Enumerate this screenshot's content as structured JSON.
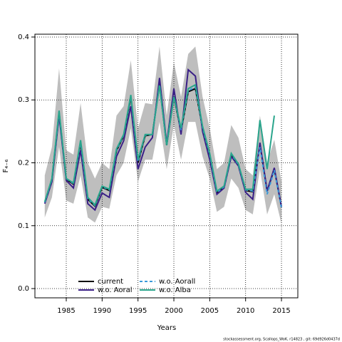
{
  "chart_data": {
    "type": "line",
    "xlabel": "Years",
    "ylabel": "F₄₋₆",
    "footer": "stockassessment.org, Scallops_WoK, r14823 , git: 69d926d0437d",
    "x": [
      1982,
      1983,
      1984,
      1985,
      1986,
      1987,
      1988,
      1989,
      1990,
      1991,
      1992,
      1993,
      1994,
      1995,
      1996,
      1997,
      1998,
      1999,
      2000,
      2001,
      2002,
      2003,
      2004,
      2005,
      2006,
      2007,
      2008,
      2009,
      2010,
      2011,
      2012,
      2013,
      2014,
      2015
    ],
    "xlim": [
      1980.63,
      2017.28
    ],
    "xticks": [
      1985,
      1990,
      1995,
      2000,
      2005,
      2010,
      2015
    ],
    "ylim": [
      -0.0147,
      0.4045
    ],
    "yticks": [
      {
        "value": 0,
        "label": "0.0"
      },
      0.1,
      0.2,
      0.3,
      0.4
    ],
    "grid": true,
    "legend": "bottom-left",
    "band": {
      "color": "#bebebe",
      "upper": [
        0.18,
        0.225,
        0.35,
        0.22,
        0.213,
        0.295,
        0.2,
        0.175,
        0.2,
        0.19,
        0.275,
        0.29,
        0.363,
        0.255,
        0.295,
        0.293,
        0.385,
        0.275,
        0.36,
        0.305,
        0.373,
        0.385,
        0.305,
        0.255,
        0.19,
        0.2,
        0.26,
        0.24,
        0.19,
        0.18,
        0.275,
        0.2,
        0.237,
        0.17
      ],
      "lower": [
        0.113,
        0.145,
        0.225,
        0.14,
        0.135,
        0.18,
        0.113,
        0.105,
        0.13,
        0.127,
        0.18,
        0.2,
        0.255,
        0.17,
        0.205,
        0.205,
        0.265,
        0.19,
        0.26,
        0.205,
        0.265,
        0.265,
        0.21,
        0.175,
        0.122,
        0.13,
        0.175,
        0.16,
        0.125,
        0.118,
        0.19,
        0.118,
        0.15,
        0.103
      ]
    },
    "series": [
      {
        "name": "current",
        "color": "#000000",
        "linestyle": "solid",
        "values": [
          0.137,
          0.173,
          0.28,
          0.174,
          0.166,
          0.232,
          0.142,
          0.131,
          0.161,
          0.156,
          0.219,
          0.243,
          0.305,
          0.2,
          0.243,
          0.245,
          0.325,
          0.228,
          0.305,
          0.25,
          0.313,
          0.318,
          0.255,
          0.212,
          0.152,
          0.162,
          0.213,
          0.197,
          0.156,
          0.154,
          0.23,
          0.155,
          0.19,
          0.13
        ]
      },
      {
        "name": "w.o. Aoral",
        "color": "#3a1f86",
        "linestyle": "solid",
        "values": [
          0.135,
          0.17,
          0.275,
          0.172,
          0.16,
          0.22,
          0.135,
          0.125,
          0.152,
          0.145,
          0.21,
          0.235,
          0.29,
          0.19,
          0.225,
          0.24,
          0.335,
          0.23,
          0.318,
          0.245,
          0.348,
          0.338,
          0.25,
          0.205,
          0.15,
          0.16,
          0.21,
          0.195,
          0.153,
          0.142,
          0.232,
          0.155,
          0.192,
          0.13
        ]
      },
      {
        "name": "w.o. Aorall",
        "color": "#3a9ad9",
        "linestyle": "dashed",
        "values": [
          0.137,
          0.174,
          0.281,
          0.175,
          0.167,
          0.233,
          0.143,
          0.132,
          0.162,
          0.157,
          0.22,
          0.244,
          0.306,
          0.202,
          0.244,
          0.245,
          0.324,
          0.228,
          0.305,
          0.252,
          0.315,
          0.32,
          0.256,
          0.213,
          0.153,
          0.162,
          0.214,
          0.197,
          0.157,
          0.155,
          0.225,
          0.15,
          0.188,
          0.128
        ]
      },
      {
        "name": "w.o. Alba",
        "color": "#2aa58c",
        "linestyle": "solid",
        "values": [
          0.138,
          0.175,
          0.283,
          0.175,
          0.168,
          0.236,
          0.145,
          0.133,
          0.163,
          0.158,
          0.222,
          0.245,
          0.308,
          0.205,
          0.245,
          0.245,
          0.323,
          0.228,
          0.305,
          0.255,
          0.318,
          0.324,
          0.258,
          0.215,
          0.155,
          0.163,
          0.215,
          0.198,
          0.158,
          0.158,
          0.268,
          0.19,
          0.275,
          null
        ]
      }
    ]
  }
}
